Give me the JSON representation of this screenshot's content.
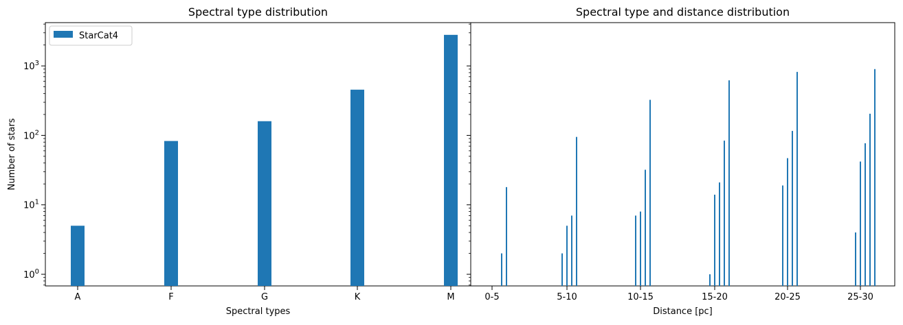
{
  "colors": {
    "bar": "#1f77b4",
    "axes": "#000000",
    "background": "#ffffff"
  },
  "chart_data": [
    {
      "type": "bar",
      "title": "Spectral type distribution",
      "xlabel": "Spectral types",
      "ylabel": "Number of stars",
      "yscale": "log",
      "ylim": [
        0.68,
        4200
      ],
      "categories": [
        "A",
        "F",
        "G",
        "K",
        "M"
      ],
      "series": [
        {
          "name": "StarCat4",
          "values": [
            5,
            83,
            160,
            455,
            2800
          ]
        }
      ],
      "y_tick_labels": [
        "10^0",
        "10^1",
        "10^2",
        "10^3"
      ],
      "legend": {
        "placement": "top-left"
      },
      "grid": false
    },
    {
      "type": "bar",
      "title": "Spectral type and distance distribution",
      "xlabel": "Distance [pc]",
      "yscale": "log",
      "ylim": [
        0.68,
        4200
      ],
      "categories": [
        "0-5",
        "5-10",
        "10-15",
        "15-20",
        "20-25",
        "25-30"
      ],
      "group_values": [
        [
          0,
          0,
          0,
          2,
          18
        ],
        [
          2,
          5,
          7,
          95,
          0
        ],
        [
          7,
          8,
          32,
          325,
          0
        ],
        [
          1,
          14,
          21,
          84,
          620
        ],
        [
          19,
          47,
          116,
          820,
          0
        ],
        [
          4,
          42,
          77,
          205,
          900
        ]
      ],
      "grid": false
    }
  ]
}
